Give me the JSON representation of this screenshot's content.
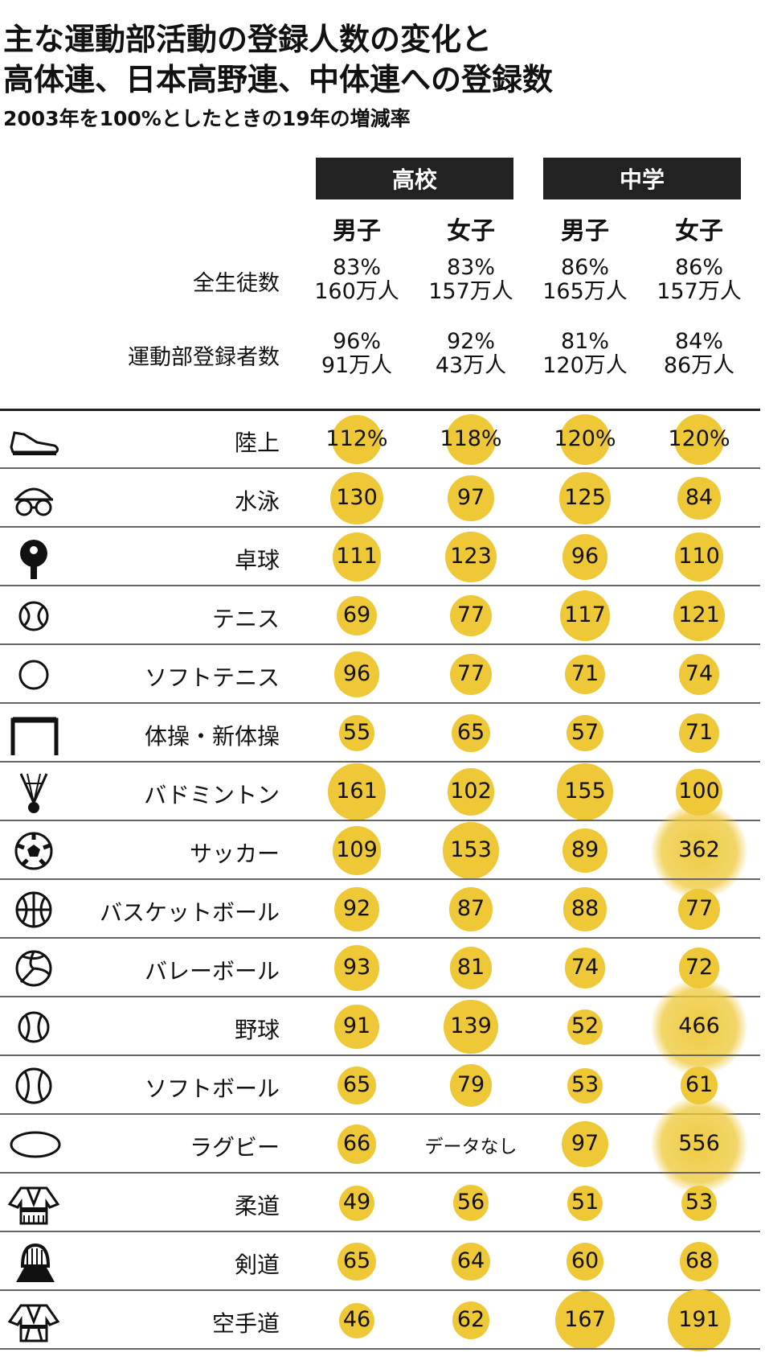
{
  "title_line1": "主な運動部活動の登録人数の変化と",
  "title_line2": "高体連、日本高野連、中体連への登録数",
  "subtitle": "2003年を100%としたときの19年の増減率",
  "groups": [
    "高校",
    "中学"
  ],
  "columns": [
    "男子",
    "女子",
    "男子",
    "女子"
  ],
  "summary_rows": [
    {
      "label": "全生徒数",
      "pct": [
        "83%",
        "83%",
        "86%",
        "86%"
      ],
      "count": [
        "160万人",
        "157万人",
        "165万人",
        "157万人"
      ]
    },
    {
      "label": "運動部登録者数",
      "pct": [
        "96%",
        "92%",
        "81%",
        "84%"
      ],
      "count": [
        "91万人",
        "43万人",
        "120万人",
        "86万人"
      ]
    }
  ],
  "chart_data": {
    "type": "table",
    "title": "主な運動部活動の登録人数の変化と高体連、日本高野連、中体連への登録数",
    "subtitle": "2003年を100%としたときの19年の増減率",
    "groups": [
      "高校",
      "中学"
    ],
    "columns": [
      "男子",
      "女子",
      "男子",
      "女子"
    ],
    "no_data_label": "データなし",
    "rows": [
      {
        "sport": "陸上",
        "icon": "running-shoe-icon",
        "labels": [
          "112%",
          "118%",
          "120%",
          "120%"
        ],
        "values": [
          112,
          118,
          120,
          120
        ]
      },
      {
        "sport": "水泳",
        "icon": "swim-goggles-icon",
        "labels": [
          "130",
          "97",
          "125",
          "84"
        ],
        "values": [
          130,
          97,
          125,
          84
        ]
      },
      {
        "sport": "卓球",
        "icon": "ping-pong-paddle-icon",
        "labels": [
          "111",
          "123",
          "96",
          "110"
        ],
        "values": [
          111,
          123,
          96,
          110
        ]
      },
      {
        "sport": "テニス",
        "icon": "tennis-ball-icon",
        "labels": [
          "69",
          "77",
          "117",
          "121"
        ],
        "values": [
          69,
          77,
          117,
          121
        ]
      },
      {
        "sport": "ソフトテニス",
        "icon": "soft-tennis-ball-icon",
        "labels": [
          "96",
          "77",
          "71",
          "74"
        ],
        "values": [
          96,
          77,
          71,
          74
        ]
      },
      {
        "sport": "体操・新体操",
        "icon": "gymnastics-bar-icon",
        "labels": [
          "55",
          "65",
          "57",
          "71"
        ],
        "values": [
          55,
          65,
          57,
          71
        ]
      },
      {
        "sport": "バドミントン",
        "icon": "shuttlecock-icon",
        "labels": [
          "161",
          "102",
          "155",
          "100"
        ],
        "values": [
          161,
          102,
          155,
          100
        ]
      },
      {
        "sport": "サッカー",
        "icon": "soccer-ball-icon",
        "labels": [
          "109",
          "153",
          "89",
          "362"
        ],
        "values": [
          109,
          153,
          89,
          362
        ]
      },
      {
        "sport": "バスケットボール",
        "icon": "basketball-icon",
        "labels": [
          "92",
          "87",
          "88",
          "77"
        ],
        "values": [
          92,
          87,
          88,
          77
        ]
      },
      {
        "sport": "バレーボール",
        "icon": "volleyball-icon",
        "labels": [
          "93",
          "81",
          "74",
          "72"
        ],
        "values": [
          93,
          81,
          74,
          72
        ]
      },
      {
        "sport": "野球",
        "icon": "baseball-icon",
        "labels": [
          "91",
          "139",
          "52",
          "466"
        ],
        "values": [
          91,
          139,
          52,
          466
        ]
      },
      {
        "sport": "ソフトボール",
        "icon": "softball-icon",
        "labels": [
          "65",
          "79",
          "53",
          "61"
        ],
        "values": [
          65,
          79,
          53,
          61
        ]
      },
      {
        "sport": "ラグビー",
        "icon": "rugby-ball-icon",
        "labels": [
          "66",
          "データなし",
          "97",
          "556"
        ],
        "values": [
          66,
          null,
          97,
          556
        ]
      },
      {
        "sport": "柔道",
        "icon": "judo-gi-icon",
        "labels": [
          "49",
          "56",
          "51",
          "53"
        ],
        "values": [
          49,
          56,
          51,
          53
        ]
      },
      {
        "sport": "剣道",
        "icon": "kendo-armor-icon",
        "labels": [
          "65",
          "64",
          "60",
          "68"
        ],
        "values": [
          65,
          64,
          60,
          68
        ]
      },
      {
        "sport": "空手道",
        "icon": "karate-gi-icon",
        "labels": [
          "46",
          "62",
          "167",
          "191"
        ],
        "values": [
          46,
          62,
          167,
          191
        ]
      }
    ]
  },
  "colors": {
    "bubble": "#eec837",
    "header_bg": "#222222",
    "text": "#111111"
  }
}
